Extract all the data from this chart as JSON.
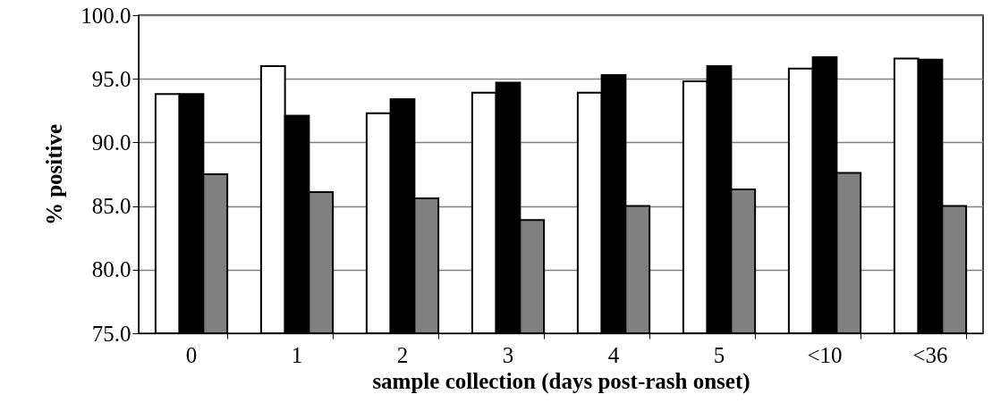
{
  "chart_data": {
    "type": "bar",
    "xlabel": "sample collection (days post-rash onset)",
    "ylabel": "% positive",
    "categories": [
      "0",
      "1",
      "2",
      "3",
      "4",
      "5",
      "<10",
      "<36"
    ],
    "series": [
      {
        "color": "#ffffff",
        "values": [
          93.8,
          96.0,
          92.3,
          93.9,
          93.9,
          94.8,
          95.8,
          96.6
        ]
      },
      {
        "color": "#000000",
        "values": [
          93.8,
          92.1,
          93.4,
          94.7,
          95.3,
          96.0,
          96.7,
          96.5
        ]
      },
      {
        "color": "#808080",
        "values": [
          87.5,
          86.1,
          85.6,
          83.9,
          85.0,
          86.3,
          87.6,
          85.0
        ]
      }
    ],
    "ylim": [
      75,
      100
    ],
    "yticks": [
      {
        "value": 75,
        "label": "75.0"
      },
      {
        "value": 80,
        "label": "80.0"
      },
      {
        "value": 85,
        "label": "85.0"
      },
      {
        "value": 90,
        "label": "90.0"
      },
      {
        "value": 95,
        "label": "95.0"
      },
      {
        "value": 100,
        "label": "100.0"
      }
    ],
    "grid": "y"
  }
}
